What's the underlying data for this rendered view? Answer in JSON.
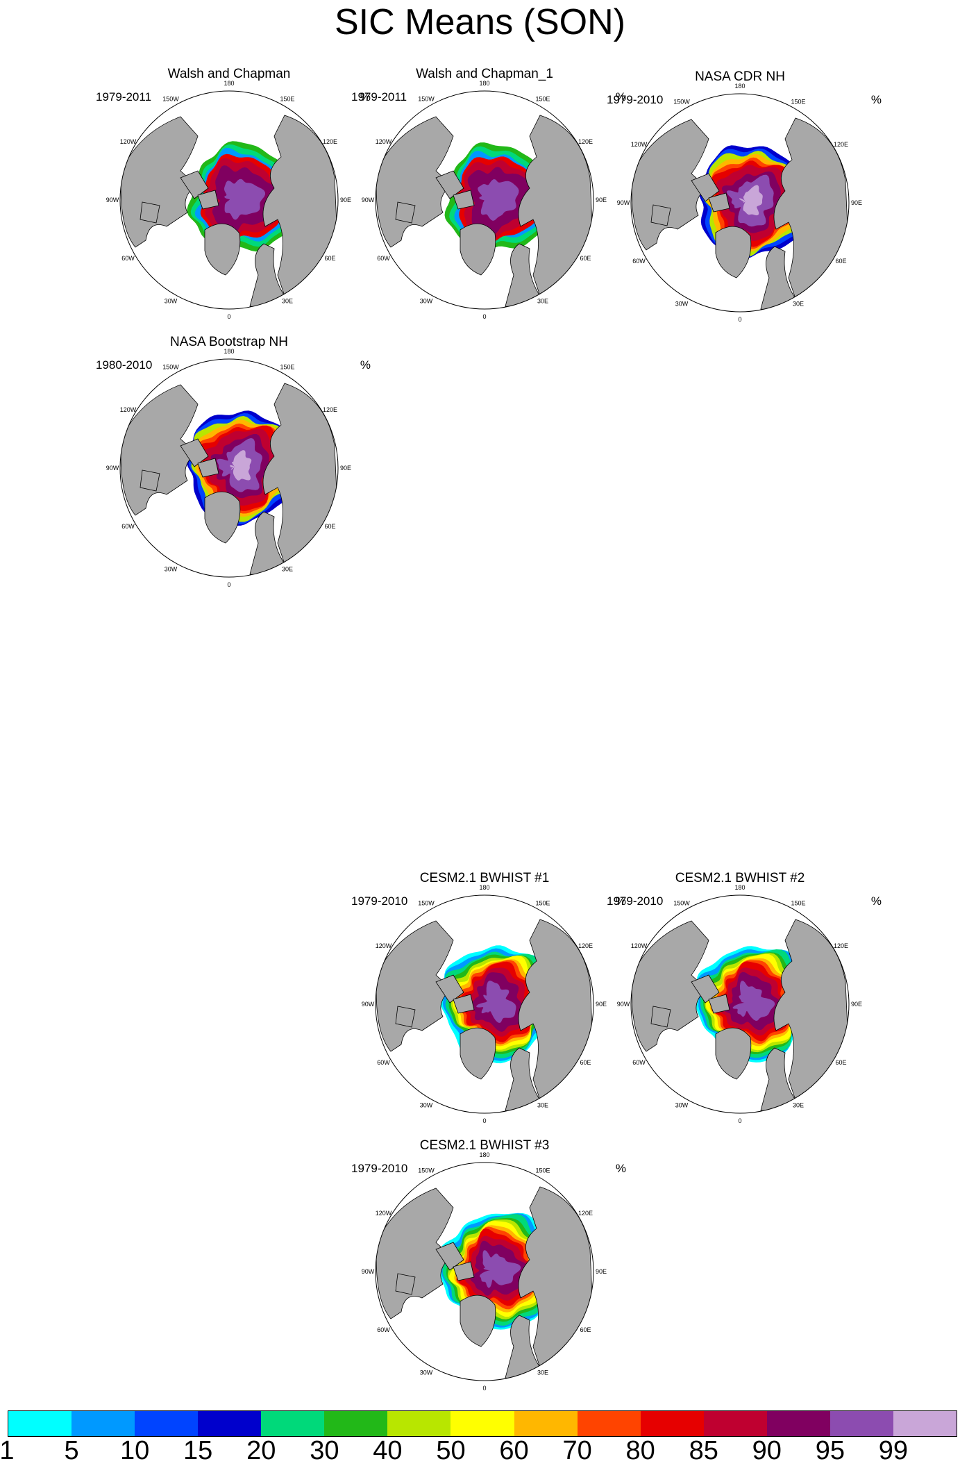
{
  "title": "SIC Means (SON)",
  "unit": "%",
  "lon_labels": [
    "180",
    "150E",
    "120E",
    "90E",
    "60E",
    "30E",
    "0",
    "30W",
    "60W",
    "90W",
    "120W",
    "150W"
  ],
  "colorbar": {
    "colors": [
      "#00ffff",
      "#0099ff",
      "#0044ff",
      "#0000cc",
      "#00d97a",
      "#22b818",
      "#b8e600",
      "#ffff00",
      "#ffb700",
      "#ff4400",
      "#e60000",
      "#bf0030",
      "#800060",
      "#8c4cb0",
      "#c9a6d8"
    ],
    "labels": [
      "1",
      "5",
      "10",
      "15",
      "20",
      "30",
      "40",
      "50",
      "60",
      "70",
      "80",
      "85",
      "90",
      "95",
      "99"
    ]
  },
  "panels": [
    {
      "id": "walsh",
      "title": "Walsh and Chapman",
      "period": "1979-2011",
      "variant": "obs_wc"
    },
    {
      "id": "walsh1",
      "title": "Walsh and Chapman_1",
      "period": "1979-2011",
      "variant": "obs_wc"
    },
    {
      "id": "cdr",
      "title": "NASA CDR NH",
      "period": "1979-2010",
      "variant": "obs_nasa"
    },
    {
      "id": "bootstrap",
      "title": "NASA Bootstrap NH",
      "period": "1980-2010",
      "variant": "obs_nasa"
    },
    {
      "id": "bw1",
      "title": "CESM2.1 BWHIST #1",
      "period": "1979-2010",
      "variant": "model"
    },
    {
      "id": "bw2",
      "title": "CESM2.1 BWHIST #2",
      "period": "1979-2010",
      "variant": "model"
    },
    {
      "id": "bw3",
      "title": "CESM2.1 BWHIST #3",
      "period": "1979-2010",
      "variant": "model"
    }
  ]
}
